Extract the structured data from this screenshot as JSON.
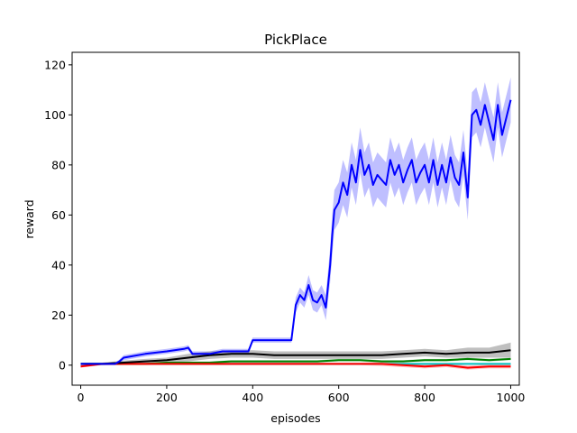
{
  "chart_data": {
    "type": "line",
    "title": "PickPlace",
    "xlabel": "episodes",
    "ylabel": "reward",
    "xlim": [
      -20,
      1020
    ],
    "ylim": [
      -8,
      125
    ],
    "xticks": [
      0,
      200,
      400,
      600,
      800,
      1000
    ],
    "yticks": [
      0,
      20,
      40,
      60,
      80,
      100,
      120
    ],
    "grid": false,
    "legend": "none",
    "series": [
      {
        "color": "#0000ff",
        "band_color": "#8080ff",
        "x": [
          0,
          40,
          80,
          90,
          100,
          150,
          200,
          240,
          250,
          260,
          280,
          300,
          330,
          360,
          390,
          400,
          430,
          460,
          480,
          490,
          500,
          510,
          520,
          530,
          540,
          550,
          560,
          570,
          580,
          585,
          590,
          600,
          610,
          620,
          630,
          640,
          650,
          660,
          670,
          680,
          690,
          700,
          710,
          720,
          730,
          740,
          750,
          760,
          770,
          780,
          790,
          800,
          810,
          820,
          830,
          840,
          850,
          860,
          870,
          880,
          890,
          900,
          910,
          920,
          930,
          940,
          950,
          960,
          970,
          980,
          990,
          1000
        ],
        "y": [
          0.5,
          0.5,
          0.5,
          1.5,
          3,
          4.5,
          5.5,
          6.5,
          7,
          4.5,
          4.5,
          4.5,
          5.5,
          5.5,
          5.5,
          10,
          10,
          10,
          10,
          10,
          24,
          28,
          26,
          32,
          26,
          25,
          28,
          23,
          40,
          52,
          62,
          65,
          73,
          68,
          80,
          73,
          86,
          76,
          80,
          72,
          76,
          74,
          72,
          82,
          76,
          80,
          73,
          78,
          82,
          73,
          77,
          80,
          73,
          82,
          72,
          80,
          73,
          83,
          75,
          72,
          85,
          67,
          100,
          102,
          96,
          104,
          97,
          90,
          104,
          92,
          99,
          106
        ],
        "band": [
          0.5,
          0.5,
          0.5,
          0.8,
          1,
          1,
          1,
          1,
          1,
          1,
          1,
          1,
          1,
          1,
          1,
          1,
          1,
          1,
          1,
          1,
          3,
          3,
          3,
          4,
          4,
          4,
          4,
          5,
          7,
          8,
          8,
          8,
          9,
          9,
          9,
          9,
          9,
          9,
          9,
          9,
          9,
          9,
          9,
          9,
          9,
          9,
          9,
          9,
          9,
          9,
          9,
          9,
          9,
          9,
          9,
          9,
          9,
          9,
          9,
          9,
          9,
          9,
          9,
          9,
          9,
          9,
          9,
          9,
          9,
          9,
          9,
          9
        ]
      },
      {
        "color": "#000000",
        "band_color": "#808080",
        "x": [
          0,
          50,
          100,
          150,
          200,
          250,
          300,
          350,
          400,
          450,
          500,
          550,
          600,
          650,
          700,
          750,
          800,
          850,
          900,
          950,
          1000
        ],
        "y": [
          0.5,
          0.5,
          1,
          1.5,
          2,
          3,
          4,
          4.5,
          4.5,
          4,
          4,
          4,
          4,
          4,
          4,
          4.5,
          5,
          4.5,
          5,
          5,
          6
        ],
        "band": [
          0.5,
          0.5,
          0.8,
          1,
          1,
          1.5,
          1.5,
          1.5,
          1.5,
          1.5,
          1.5,
          1.5,
          1.5,
          1.5,
          1.5,
          1.5,
          1.5,
          1.5,
          2,
          2,
          3
        ]
      },
      {
        "color": "#ff0000",
        "band_color": "#ff8080",
        "x": [
          0,
          50,
          100,
          150,
          200,
          250,
          300,
          350,
          400,
          450,
          500,
          550,
          600,
          650,
          700,
          750,
          800,
          850,
          900,
          950,
          1000
        ],
        "y": [
          -0.5,
          0.5,
          0.5,
          0.5,
          0.5,
          0.5,
          0.5,
          0.5,
          0.5,
          0.5,
          0.5,
          0.5,
          0.5,
          0.5,
          0.5,
          0,
          -0.5,
          0,
          -1,
          -0.5,
          -0.5
        ],
        "band": [
          0.5,
          0.5,
          0.5,
          0.5,
          0.5,
          0.5,
          0.5,
          0.5,
          0.5,
          0.5,
          0.5,
          0.5,
          0.5,
          0.5,
          0.8,
          0.8,
          0.8,
          0.8,
          0.8,
          0.8,
          0.8
        ]
      },
      {
        "color": "#008000",
        "band_color": "#80c080",
        "x": [
          0,
          50,
          100,
          150,
          200,
          250,
          300,
          350,
          400,
          450,
          500,
          550,
          600,
          650,
          700,
          750,
          800,
          850,
          900,
          950,
          1000
        ],
        "y": [
          0.5,
          0.5,
          0.5,
          0.5,
          1,
          1,
          1,
          1.5,
          1.5,
          1.5,
          1.5,
          1.5,
          2,
          2,
          1.5,
          1.5,
          2,
          2,
          2.5,
          2,
          2.5
        ],
        "band": [
          0.3,
          0.3,
          0.3,
          0.3,
          0.5,
          0.5,
          0.5,
          0.5,
          0.5,
          0.5,
          0.5,
          0.5,
          0.5,
          0.5,
          0.5,
          0.5,
          0.5,
          0.5,
          0.5,
          0.5,
          0.5
        ]
      },
      {
        "color": "#00bfbf",
        "band_color": "#80dfdf",
        "x": [
          0,
          50,
          100,
          150,
          200,
          250,
          300,
          350,
          400,
          450,
          500,
          550,
          600,
          650,
          700,
          750,
          800,
          850,
          900,
          950,
          1000
        ],
        "y": [
          0.5,
          0.5,
          0.5,
          0.5,
          0.5,
          0.5,
          0.5,
          0.5,
          0.5,
          0.5,
          0.5,
          0.5,
          0.5,
          0.5,
          0.5,
          0.5,
          0.5,
          0.5,
          0.5,
          0.5,
          0.5
        ],
        "band": [
          0.2,
          0.2,
          0.2,
          0.2,
          0.2,
          0.2,
          0.2,
          0.2,
          0.2,
          0.2,
          0.2,
          0.2,
          0.2,
          0.2,
          0.2,
          0.2,
          0.2,
          0.2,
          0.2,
          0.2,
          0.2
        ]
      }
    ]
  }
}
